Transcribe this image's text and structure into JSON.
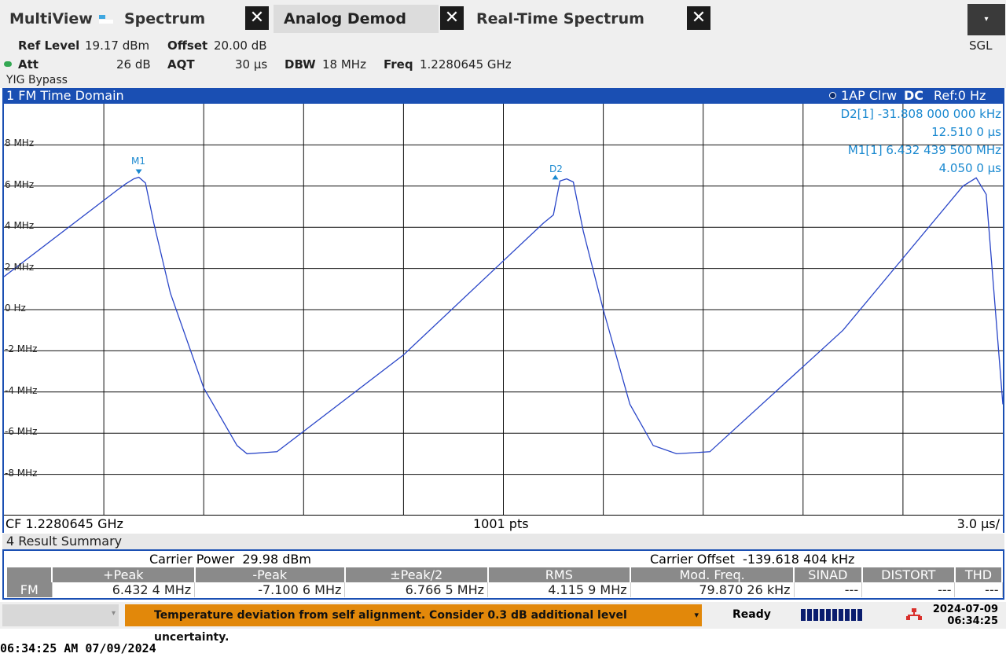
{
  "tabs": {
    "multiview": "MultiView",
    "spectrum": "Spectrum",
    "analog_demod": "Analog Demod",
    "realtime": "Real-Time Spectrum",
    "close_glyph": "✕"
  },
  "menu": {
    "sgl": "SGL",
    "dropdown_glyph": "▾"
  },
  "settings": {
    "ref_level_label": "Ref Level",
    "ref_level_value": "19.17 dBm",
    "offset_label": "Offset",
    "offset_value": "20.00 dB",
    "att_label": "Att",
    "att_value": "26 dB",
    "aqt_label": "AQT",
    "aqt_value": "30 µs",
    "dbw_label": "DBW",
    "dbw_value": "18 MHz",
    "freq_label": "Freq",
    "freq_value": "1.2280645 GHz",
    "yig": "YIG Bypass"
  },
  "diagram": {
    "title": "1 FM Time Domain",
    "trace_info": "1AP Clrw",
    "coupling": "DC",
    "ref": "Ref:0 Hz",
    "markers": {
      "d2_label": "D2[1]",
      "d2_value": "-31.808 000 000 kHz",
      "d2_time": "12.510 0 µs",
      "m1_label": "M1[1]",
      "m1_value": "6.432 439 500 MHz",
      "m1_time": "4.050 0 µs",
      "m1_tag": "M1",
      "d2_tag": "D2"
    },
    "footer_left": "CF 1.2280645 GHz",
    "footer_center": "1001 pts",
    "footer_right": "3.0 µs/"
  },
  "chart_data": {
    "type": "line",
    "ylabel_ticks": [
      "8 MHz",
      "6 MHz",
      "4 MHz",
      "2 MHz",
      "0 Hz",
      "-2 MHz",
      "-4 MHz",
      "-6 MHz",
      "-8 MHz"
    ],
    "ylim": [
      -10,
      10
    ],
    "xlim": [
      0,
      30
    ],
    "x_unit": "µs",
    "y_unit": "MHz",
    "series": [
      {
        "color": "#2a46c8",
        "x": [
          0,
          3.4,
          3.65,
          3.9,
          4.05,
          4.25,
          4.5,
          5.0,
          6.0,
          7.0,
          7.3,
          8.2,
          12.0,
          16.2,
          16.5,
          16.7,
          16.9,
          17.1,
          17.4,
          18.0,
          18.8,
          19.5,
          20.2,
          21.2,
          25.2,
          28.8,
          29.2,
          29.5,
          30.0
        ],
        "y": [
          1.6,
          5.8,
          6.1,
          6.35,
          6.43,
          6.15,
          4.2,
          0.8,
          -3.8,
          -6.6,
          -7.0,
          -6.9,
          -2.2,
          4.2,
          4.6,
          6.25,
          6.35,
          6.2,
          3.8,
          0.0,
          -4.6,
          -6.6,
          -7.0,
          -6.9,
          -1.0,
          6.0,
          6.4,
          5.6,
          -4.6
        ]
      }
    ]
  },
  "results": {
    "title": "4 Result Summary",
    "carrier_power_label": "Carrier Power",
    "carrier_power_value": "29.98 dBm",
    "carrier_offset_label": "Carrier Offset",
    "carrier_offset_value": "-139.618 404 kHz",
    "headers": [
      "+Peak",
      "-Peak",
      "±Peak/2",
      "RMS",
      "Mod. Freq.",
      "SINAD",
      "DISTORT",
      "THD"
    ],
    "row_label": "FM",
    "row": [
      "6.432 4 MHz",
      "-7.100 6 MHz",
      "6.766 5 MHz",
      "4.115 9 MHz",
      "79.870 26 kHz",
      "---",
      "---",
      "---"
    ]
  },
  "status": {
    "warning": "Temperature deviation from self alignment. Consider 0.3 dB additional level uncertainty.",
    "ready": "Ready",
    "date": "2024-07-09",
    "time": "06:34:25"
  },
  "footer_timestamp": "06:34:25 AM  07/09/2024"
}
